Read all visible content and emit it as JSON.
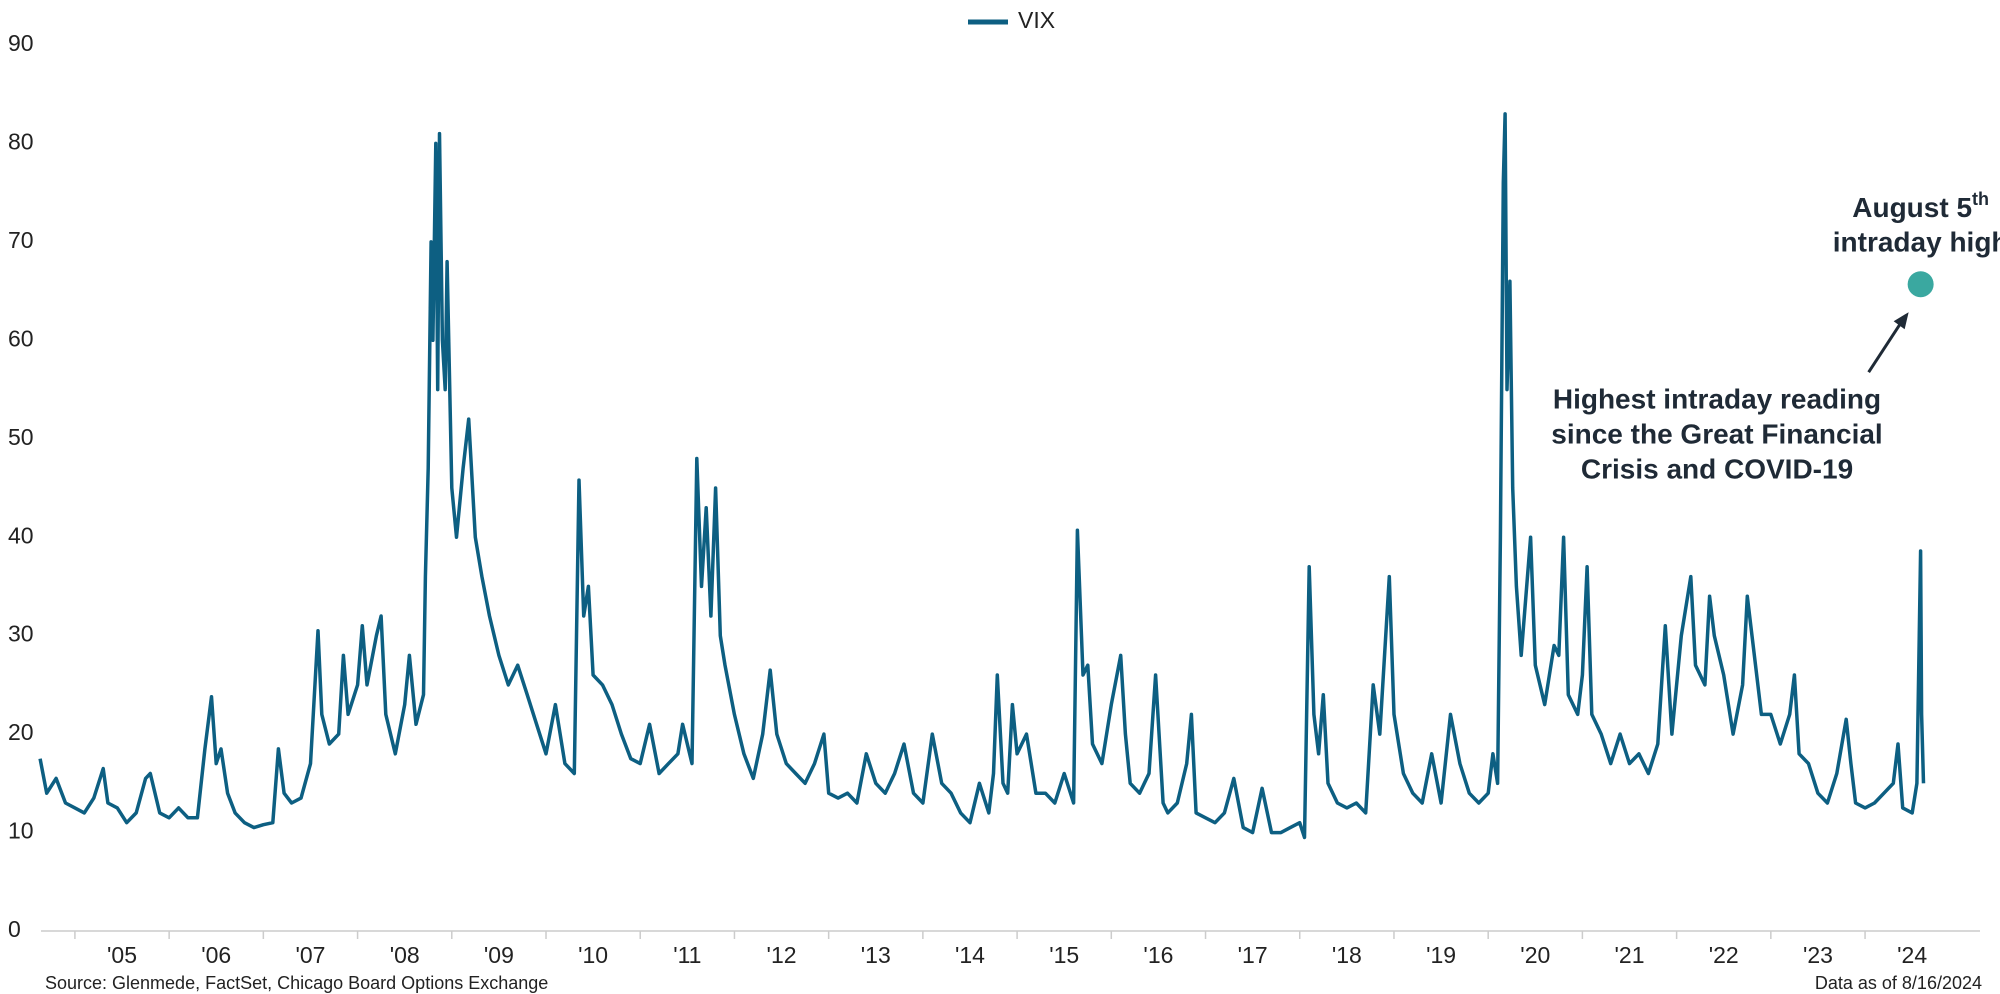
{
  "chart_data": {
    "type": "line",
    "series": [
      {
        "name": "VIX",
        "color": "#0d5f82",
        "x": [
          2004.63,
          2004.7,
          2004.8,
          2004.9,
          2005.0,
          2005.1,
          2005.2,
          2005.3,
          2005.35,
          2005.45,
          2005.55,
          2005.65,
          2005.75,
          2005.8,
          2005.9,
          2006.0,
          2006.1,
          2006.2,
          2006.3,
          2006.38,
          2006.45,
          2006.5,
          2006.55,
          2006.62,
          2006.7,
          2006.8,
          2006.9,
          2007.0,
          2007.1,
          2007.16,
          2007.22,
          2007.3,
          2007.4,
          2007.5,
          2007.58,
          2007.62,
          2007.7,
          2007.8,
          2007.85,
          2007.9,
          2008.0,
          2008.05,
          2008.1,
          2008.2,
          2008.25,
          2008.3,
          2008.4,
          2008.5,
          2008.55,
          2008.62,
          2008.7,
          2008.72,
          2008.75,
          2008.78,
          2008.8,
          2008.83,
          2008.85,
          2008.87,
          2008.9,
          2008.93,
          2008.95,
          2009.0,
          2009.05,
          2009.12,
          2009.18,
          2009.25,
          2009.32,
          2009.4,
          2009.5,
          2009.6,
          2009.7,
          2009.8,
          2009.9,
          2010.0,
          2010.1,
          2010.2,
          2010.3,
          2010.35,
          2010.4,
          2010.45,
          2010.5,
          2010.6,
          2010.7,
          2010.8,
          2010.9,
          2011.0,
          2011.1,
          2011.2,
          2011.3,
          2011.4,
          2011.45,
          2011.55,
          2011.6,
          2011.65,
          2011.7,
          2011.75,
          2011.8,
          2011.85,
          2011.9,
          2012.0,
          2012.1,
          2012.2,
          2012.3,
          2012.38,
          2012.45,
          2012.55,
          2012.65,
          2012.75,
          2012.85,
          2012.95,
          2013.0,
          2013.1,
          2013.2,
          2013.3,
          2013.4,
          2013.5,
          2013.6,
          2013.7,
          2013.8,
          2013.9,
          2014.0,
          2014.1,
          2014.2,
          2014.3,
          2014.4,
          2014.5,
          2014.6,
          2014.7,
          2014.75,
          2014.79,
          2014.85,
          2014.9,
          2014.95,
          2015.0,
          2015.1,
          2015.2,
          2015.3,
          2015.4,
          2015.5,
          2015.6,
          2015.64,
          2015.7,
          2015.75,
          2015.8,
          2015.9,
          2016.0,
          2016.1,
          2016.15,
          2016.2,
          2016.3,
          2016.4,
          2016.47,
          2016.55,
          2016.6,
          2016.7,
          2016.8,
          2016.85,
          2016.9,
          2017.0,
          2017.1,
          2017.2,
          2017.3,
          2017.4,
          2017.5,
          2017.6,
          2017.7,
          2017.8,
          2017.9,
          2018.0,
          2018.05,
          2018.1,
          2018.15,
          2018.2,
          2018.25,
          2018.3,
          2018.4,
          2018.5,
          2018.6,
          2018.7,
          2018.78,
          2018.85,
          2018.95,
          2019.0,
          2019.1,
          2019.2,
          2019.3,
          2019.4,
          2019.5,
          2019.6,
          2019.7,
          2019.8,
          2019.9,
          2020.0,
          2020.05,
          2020.1,
          2020.13,
          2020.16,
          2020.18,
          2020.2,
          2020.23,
          2020.26,
          2020.3,
          2020.35,
          2020.45,
          2020.5,
          2020.6,
          2020.65,
          2020.7,
          2020.75,
          2020.8,
          2020.85,
          2020.95,
          2021.0,
          2021.05,
          2021.1,
          2021.2,
          2021.3,
          2021.4,
          2021.5,
          2021.6,
          2021.7,
          2021.8,
          2021.88,
          2021.95,
          2022.05,
          2022.15,
          2022.2,
          2022.3,
          2022.35,
          2022.4,
          2022.5,
          2022.6,
          2022.7,
          2022.75,
          2022.8,
          2022.9,
          2023.0,
          2023.1,
          2023.2,
          2023.25,
          2023.3,
          2023.4,
          2023.5,
          2023.6,
          2023.7,
          2023.8,
          2023.85,
          2023.9,
          2024.0,
          2024.1,
          2024.2,
          2024.3,
          2024.35,
          2024.4,
          2024.5,
          2024.55,
          2024.59,
          2024.6,
          2024.62
        ],
        "values": [
          17.5,
          14,
          15.5,
          13,
          12.5,
          12,
          13.5,
          16.5,
          13,
          12.5,
          11,
          12,
          15.5,
          16,
          12,
          11.5,
          12.5,
          11.5,
          11.5,
          18.5,
          23.8,
          17,
          18.5,
          14,
          12,
          11,
          10.5,
          10.8,
          11,
          18.5,
          14,
          13,
          13.5,
          17,
          30.5,
          22,
          19,
          20,
          28,
          22,
          25,
          31,
          25,
          30,
          32,
          22,
          18,
          23,
          28,
          21,
          24,
          36,
          47,
          70,
          60,
          80,
          55,
          81,
          60,
          55,
          68,
          45,
          40,
          47,
          52,
          40,
          36,
          32,
          28,
          25,
          27,
          24,
          21,
          18,
          23,
          17,
          16,
          45.8,
          32,
          35,
          26,
          25,
          23,
          20,
          17.5,
          17,
          21,
          16,
          17,
          18,
          21,
          17,
          48,
          35,
          43,
          32,
          45,
          30,
          27,
          22,
          18,
          15.5,
          20,
          26.5,
          20,
          17,
          16,
          15,
          17,
          20,
          14,
          13.5,
          14,
          13,
          18,
          15,
          14,
          16,
          19,
          14,
          13,
          20,
          15,
          14,
          12,
          11,
          15,
          12,
          16,
          26,
          15,
          14,
          23,
          18,
          20,
          14,
          14,
          13,
          16,
          13,
          40.7,
          26,
          27,
          19,
          17,
          23,
          28,
          20,
          15,
          14,
          16,
          26,
          13,
          12,
          13,
          17,
          22,
          12,
          11.5,
          11,
          12,
          15.5,
          10.5,
          10,
          14.5,
          10,
          10,
          10.5,
          11,
          9.5,
          37,
          22,
          18,
          24,
          15,
          13,
          12.5,
          13,
          12,
          25,
          20,
          36,
          22,
          16,
          14,
          13,
          18,
          13,
          22,
          17,
          14,
          13,
          14,
          18,
          15,
          40,
          76,
          83,
          55,
          66,
          45,
          35,
          28,
          40,
          27,
          23,
          26,
          29,
          28,
          40,
          24,
          22,
          26,
          37,
          22,
          20,
          17,
          20,
          17,
          18,
          16,
          19,
          31,
          20,
          30,
          36,
          27,
          25,
          34,
          30,
          26,
          20,
          25,
          34,
          30,
          22,
          22,
          19,
          22,
          26,
          18,
          17,
          14,
          13,
          16,
          21.5,
          17,
          13,
          12.5,
          13,
          14,
          15,
          19,
          12.5,
          12,
          15,
          38.6,
          22,
          15
        ]
      }
    ],
    "xlim": [
      2004.64,
      2025.22
    ],
    "xticks": [
      {
        "value": 2005,
        "label": "'05"
      },
      {
        "value": 2006,
        "label": "'06"
      },
      {
        "value": 2007,
        "label": "'07"
      },
      {
        "value": 2008,
        "label": "'08"
      },
      {
        "value": 2009,
        "label": "'09"
      },
      {
        "value": 2010,
        "label": "'10"
      },
      {
        "value": 2011,
        "label": "'11"
      },
      {
        "value": 2012,
        "label": "'12"
      },
      {
        "value": 2013,
        "label": "'13"
      },
      {
        "value": 2014,
        "label": "'14"
      },
      {
        "value": 2015,
        "label": "'15"
      },
      {
        "value": 2016,
        "label": "'16"
      },
      {
        "value": 2017,
        "label": "'17"
      },
      {
        "value": 2018,
        "label": "'18"
      },
      {
        "value": 2019,
        "label": "'19"
      },
      {
        "value": 2020,
        "label": "'20"
      },
      {
        "value": 2021,
        "label": "'21"
      },
      {
        "value": 2022,
        "label": "'22"
      },
      {
        "value": 2023,
        "label": "'23"
      },
      {
        "value": 2024,
        "label": "'24"
      }
    ],
    "ylim": [
      0,
      90
    ],
    "yticks": [
      0,
      10,
      20,
      30,
      40,
      50,
      60,
      70,
      80,
      90
    ],
    "grid": false,
    "legend": "top",
    "annotation": {
      "x": 2024.59,
      "value": 65.7,
      "color": "#3aa8a0",
      "title_main": "August 5",
      "title_sup": "th",
      "title_line2": "intraday high"
    },
    "note_lines": [
      "Highest intraday reading",
      "since the Great Financial",
      "Crisis and COVID-19"
    ],
    "source": "Source: Glenmede, FactSet, Chicago Board Options Exchange",
    "as_of": "Data as of 8/16/2024"
  }
}
